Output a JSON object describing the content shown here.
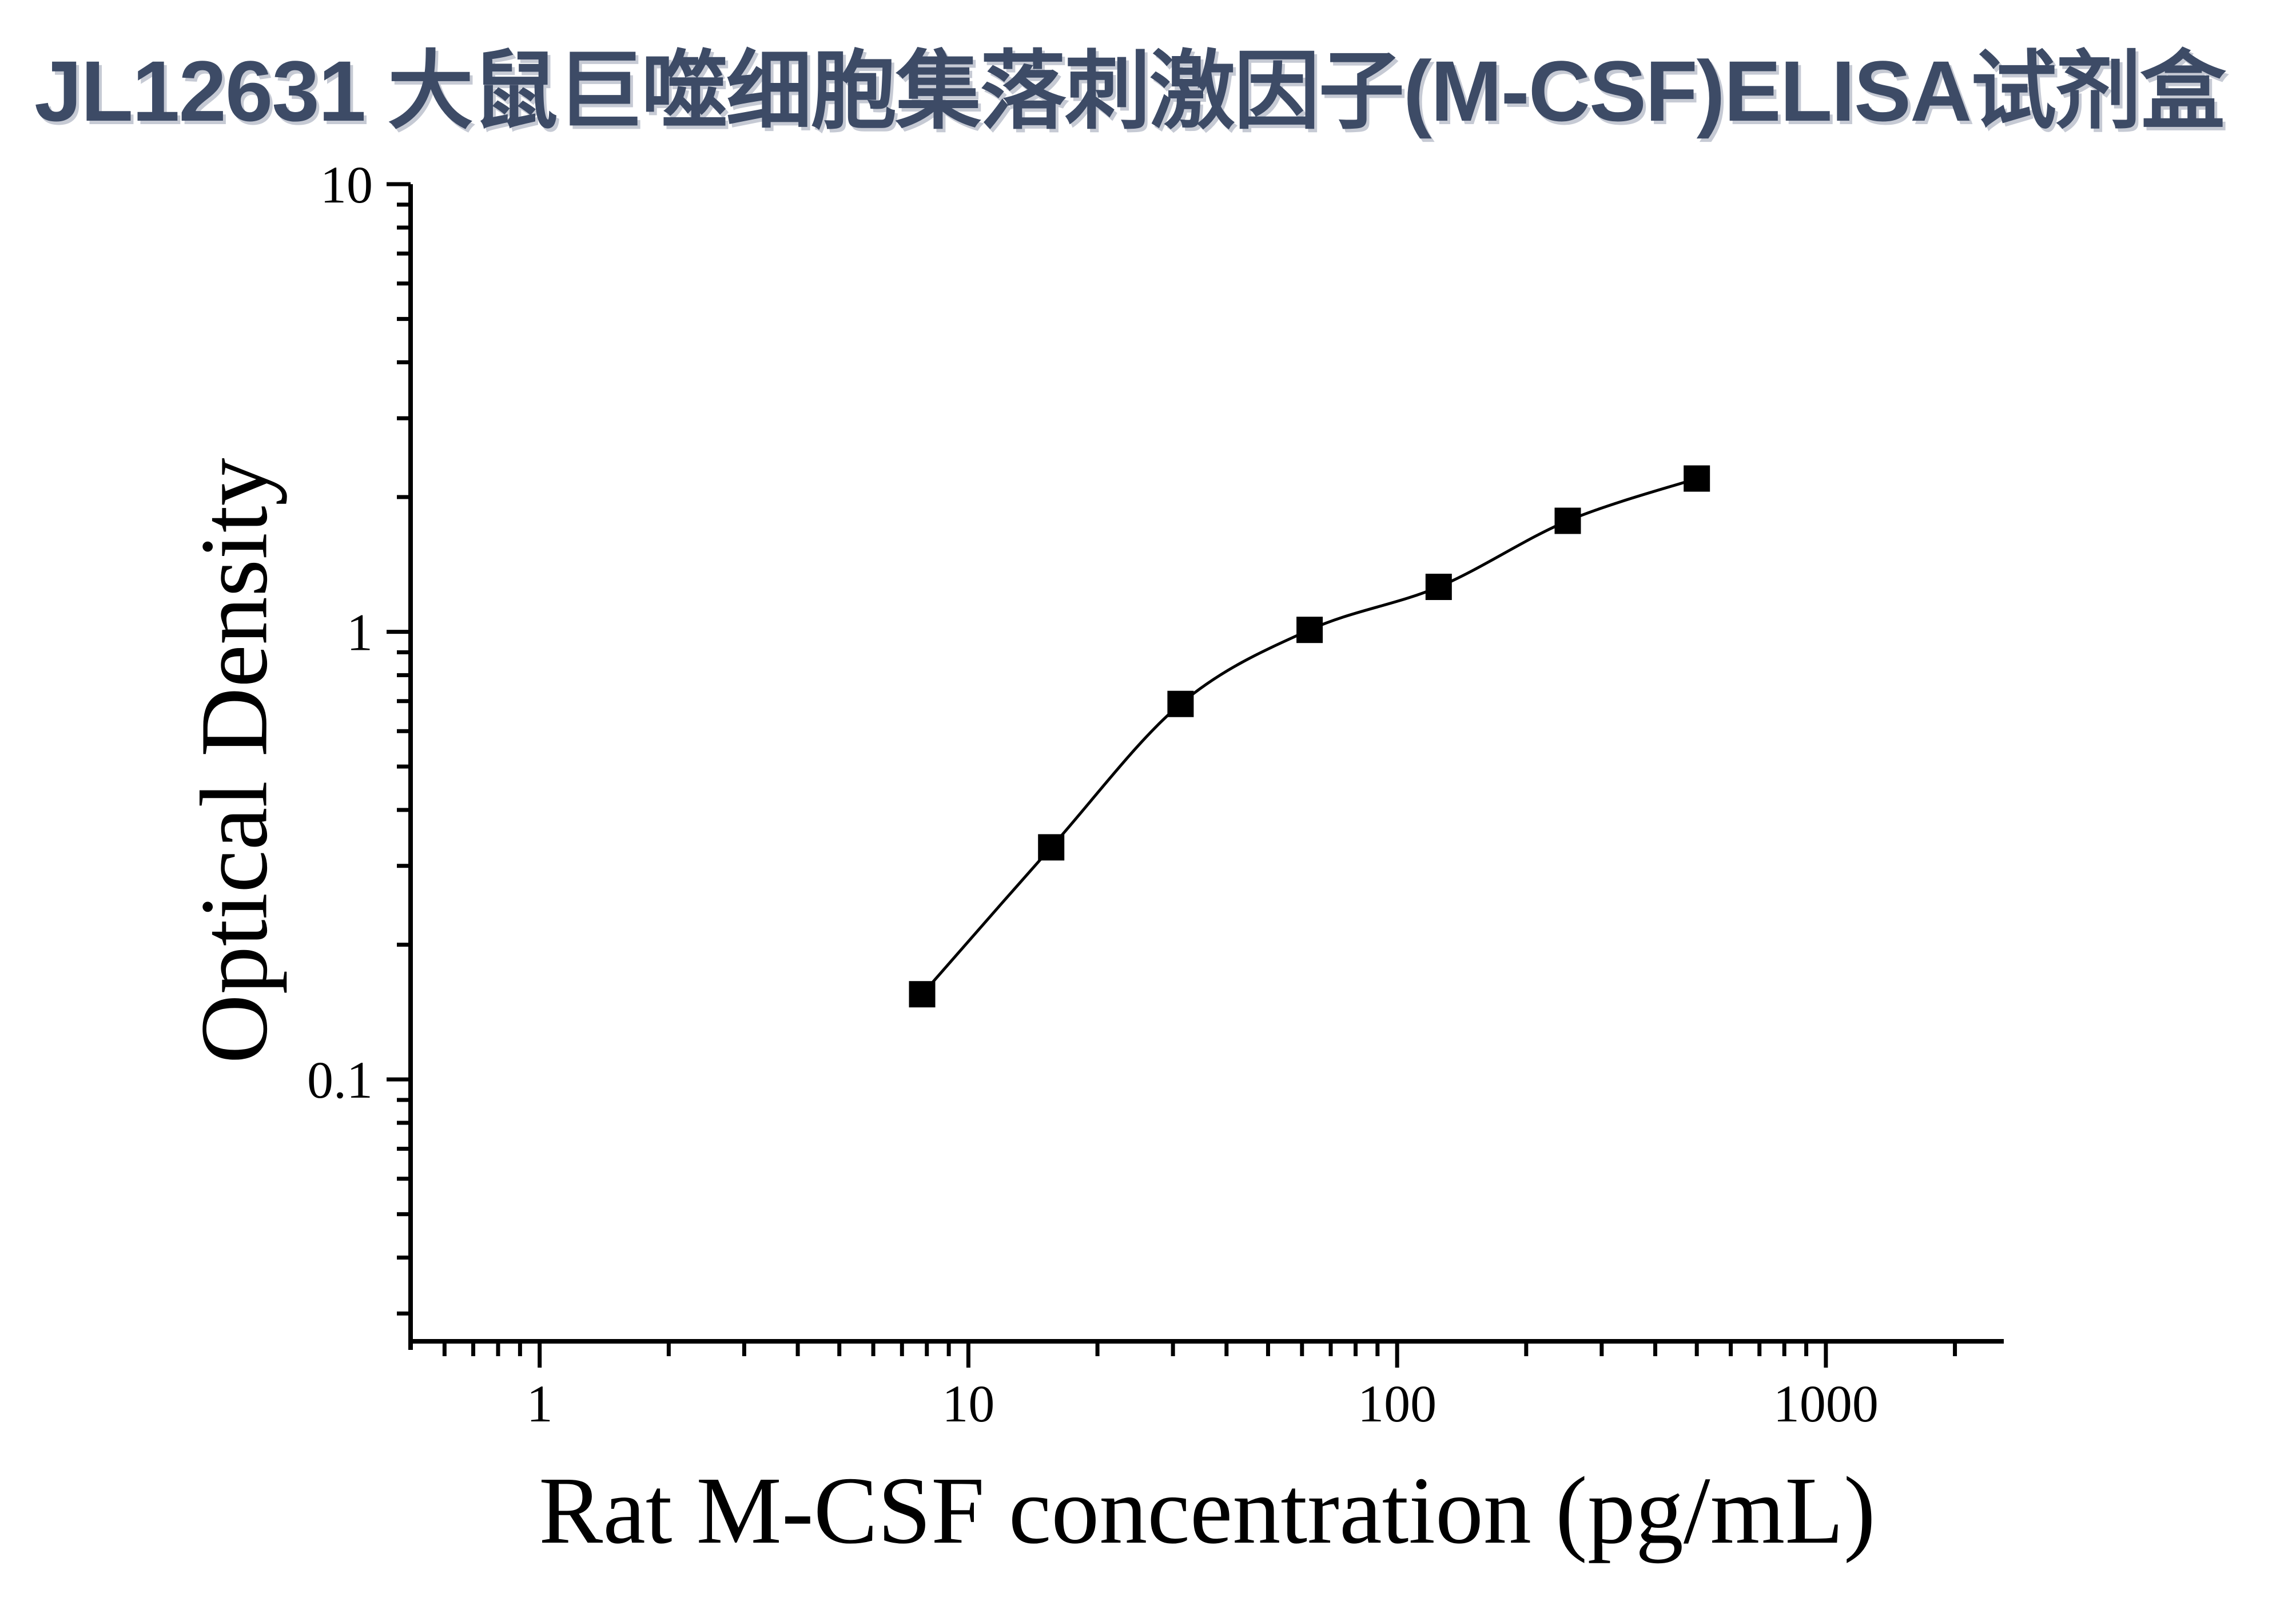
{
  "page": {
    "title": "JL12631 大鼠巨噬细胞集落刺激因子(M-CSF)ELISA试剂盒"
  },
  "colors": {
    "title_text": "#3d4b66",
    "title_shadow": "#c6cad4",
    "axis": "#000000",
    "tick_label_text": "#000000",
    "marker": "#000000",
    "curve": "#000000",
    "background": "#ffffff"
  },
  "chart_data": {
    "type": "scatter",
    "xlabel": "Rat M-CSF concentration (pg/mL)",
    "ylabel": "Optical Density",
    "x_scale": "log",
    "y_scale": "log",
    "x_range": [
      0.5,
      2600
    ],
    "y_range": [
      0.026,
      10
    ],
    "x_major_ticks": [
      1,
      10,
      100,
      1000
    ],
    "x_major_tick_labels": [
      "1",
      "10",
      "100",
      "1000"
    ],
    "x_minor_ticks": [
      0.6,
      0.7,
      0.8,
      0.9,
      2,
      3,
      4,
      5,
      6,
      7,
      8,
      9,
      20,
      30,
      40,
      50,
      60,
      70,
      80,
      90,
      200,
      300,
      400,
      500,
      600,
      700,
      800,
      900,
      2000
    ],
    "y_major_ticks": [
      0.1,
      1,
      10
    ],
    "y_major_tick_labels": [
      "0.1",
      "1",
      "10"
    ],
    "y_minor_ticks": [
      0.03,
      0.04,
      0.05,
      0.06,
      0.07,
      0.08,
      0.09,
      0.2,
      0.3,
      0.4,
      0.5,
      0.6,
      0.7,
      0.8,
      0.9,
      2,
      3,
      4,
      5,
      6,
      7,
      8,
      9
    ],
    "grid": false,
    "legend": "none",
    "series": [
      {
        "marker": "filled-square",
        "fit_line": true,
        "x": [
          7.8,
          15.6,
          31.25,
          62.5,
          125,
          250,
          500
        ],
        "y": [
          0.155,
          0.33,
          0.69,
          1.01,
          1.26,
          1.77,
          2.2
        ]
      }
    ]
  }
}
